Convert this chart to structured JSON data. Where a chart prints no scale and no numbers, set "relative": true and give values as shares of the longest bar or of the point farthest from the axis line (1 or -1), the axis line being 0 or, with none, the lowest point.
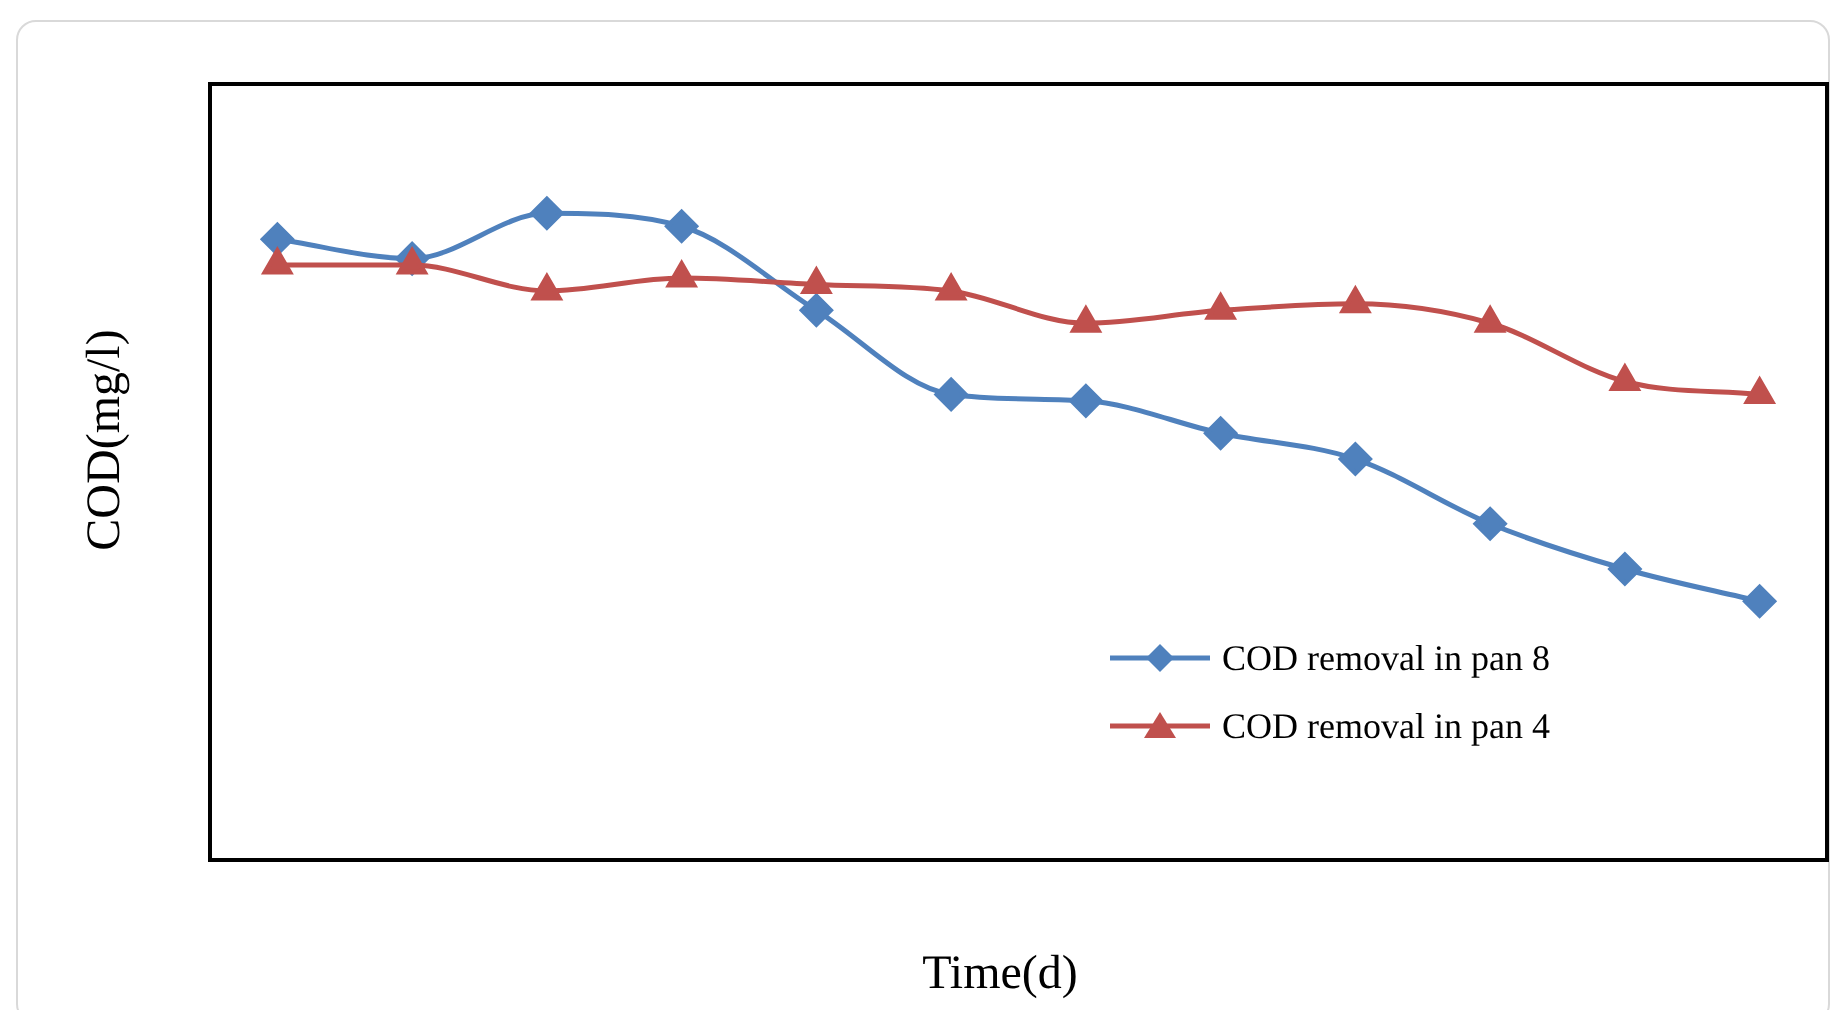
{
  "chart_data": {
    "type": "line",
    "xlabel": "Time(d)",
    "ylabel": "COD(mg/l)",
    "relative": true,
    "legend": "bottom right",
    "grid": false,
    "categories": [
      null,
      null,
      null,
      null,
      null,
      null,
      null,
      null,
      null,
      null,
      null,
      null
    ],
    "series": [
      {
        "name": "COD removal in pan 8",
        "color": "#4f81bd",
        "marker": "diamond",
        "values": [
          0.96,
          0.93,
          1,
          0.98,
          0.85,
          0.72,
          0.71,
          0.66,
          0.62,
          0.52,
          0.45,
          0.4
        ]
      },
      {
        "name": "COD removal in pan 4",
        "color": "#c0504d",
        "marker": "triangle",
        "values": [
          0.92,
          0.92,
          0.88,
          0.9,
          0.89,
          0.88,
          0.83,
          0.85,
          0.86,
          0.83,
          0.74,
          0.72
        ]
      }
    ]
  }
}
